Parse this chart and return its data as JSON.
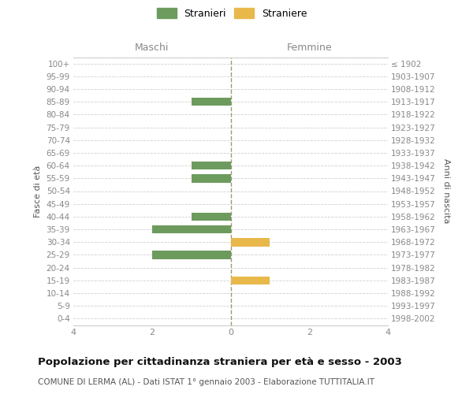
{
  "age_groups": [
    "0-4",
    "5-9",
    "10-14",
    "15-19",
    "20-24",
    "25-29",
    "30-34",
    "35-39",
    "40-44",
    "45-49",
    "50-54",
    "55-59",
    "60-64",
    "65-69",
    "70-74",
    "75-79",
    "80-84",
    "85-89",
    "90-94",
    "95-99",
    "100+"
  ],
  "birth_years": [
    "1998-2002",
    "1993-1997",
    "1988-1992",
    "1983-1987",
    "1978-1982",
    "1973-1977",
    "1968-1972",
    "1963-1967",
    "1958-1962",
    "1953-1957",
    "1948-1952",
    "1943-1947",
    "1938-1942",
    "1933-1937",
    "1928-1932",
    "1923-1927",
    "1918-1922",
    "1913-1917",
    "1908-1912",
    "1903-1907",
    "≤ 1902"
  ],
  "maschi_stranieri": [
    0,
    0,
    0,
    0,
    0,
    2,
    0,
    2,
    1,
    0,
    0,
    1,
    1,
    0,
    0,
    0,
    0,
    1,
    0,
    0,
    0
  ],
  "femmine_straniere": [
    0,
    0,
    0,
    1,
    0,
    0,
    1,
    0,
    0,
    0,
    0,
    0,
    0,
    0,
    0,
    0,
    0,
    0,
    0,
    0,
    0
  ],
  "male_color": "#6d9b5e",
  "female_color": "#e8b84b",
  "xlim": 4,
  "title": "Popolazione per cittadinanza straniera per età e sesso - 2003",
  "subtitle": "COMUNE DI LERMA (AL) - Dati ISTAT 1° gennaio 2003 - Elaborazione TUTTITALIA.IT",
  "ylabel_left": "Fasce di età",
  "ylabel_right": "Anni di nascita",
  "header_left": "Maschi",
  "header_right": "Femmine",
  "legend_stranieri": "Stranieri",
  "legend_straniere": "Straniere",
  "background_color": "#ffffff",
  "grid_color": "#d0d0d0",
  "bar_height": 0.65,
  "header_color": "#888888",
  "tick_color": "#888888"
}
